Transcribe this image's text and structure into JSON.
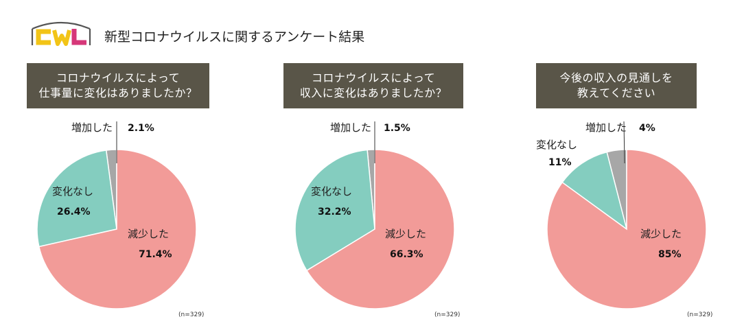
{
  "page": {
    "title": "新型コロナウイルスに関するアンケート結果"
  },
  "logo": {
    "text": "CWL",
    "colors": {
      "c": "#F2C417",
      "w": "#F2C417",
      "l": "#D63779",
      "frame": "#555555"
    }
  },
  "colors": {
    "decrease": "#F29B98",
    "no_change": "#84CDBF",
    "increase": "#A7A7A7",
    "header_bg": "#595548"
  },
  "chart_data": [
    {
      "type": "pie",
      "title_lines": [
        "コロナウイルスによって",
        "仕事量に変化はありましたか？"
      ],
      "labels": [
        "減少した",
        "変化なし",
        "増加した"
      ],
      "values": [
        71.4,
        26.4,
        2.1
      ],
      "value_labels": [
        "71.4%",
        "26.4%",
        "2.1%"
      ],
      "colors": [
        "#F29B98",
        "#84CDBF",
        "#A7A7A7"
      ],
      "note": "(n=329)"
    },
    {
      "type": "pie",
      "title_lines": [
        "コロナウイルスによって",
        "収入に変化はありましたか？"
      ],
      "labels": [
        "減少した",
        "変化なし",
        "増加した"
      ],
      "values": [
        66.3,
        32.2,
        1.5
      ],
      "value_labels": [
        "66.3%",
        "32.2%",
        "1.5%"
      ],
      "colors": [
        "#F29B98",
        "#84CDBF",
        "#A7A7A7"
      ],
      "note": "(n=329)"
    },
    {
      "type": "pie",
      "title_lines": [
        "今後の収入の見通しを",
        "教えてください"
      ],
      "labels": [
        "減少した",
        "変化なし",
        "増加した"
      ],
      "values": [
        85,
        11,
        4
      ],
      "value_labels": [
        "85%",
        "11%",
        "4%"
      ],
      "colors": [
        "#F29B98",
        "#84CDBF",
        "#A7A7A7"
      ],
      "note": "(n=329)"
    }
  ]
}
